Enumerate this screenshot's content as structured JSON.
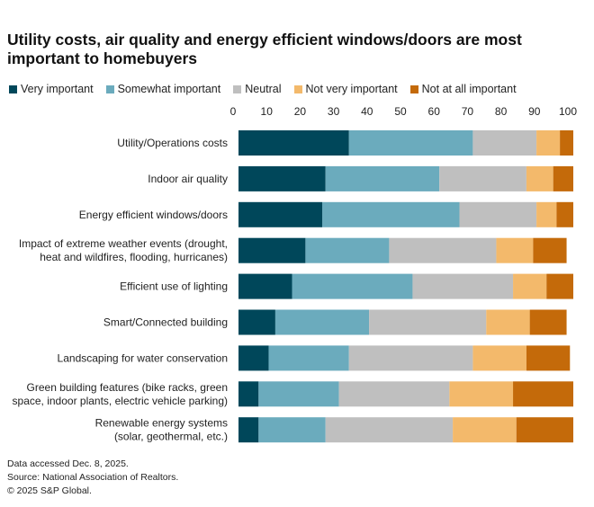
{
  "title": "Utility costs, air quality and energy efficient windows/doors are most important to homebuyers",
  "colors": {
    "very": "#00475a",
    "somewhat": "#6babbd",
    "neutral": "#bfbfbf",
    "not_very": "#f3b96b",
    "not_at_all": "#c46a0a"
  },
  "footer": {
    "accessed": "Data accessed Dec. 8, 2025.",
    "source": "Source:  National Association of Realtors.",
    "copyright": "© 2025 S&P Global."
  },
  "chart_data": {
    "type": "bar",
    "orientation": "horizontal",
    "stacked": true,
    "title": "Utility costs, air quality and energy efficient windows/doors are most important to homebuyers",
    "xlabel": "",
    "ylabel": "",
    "xlim": [
      0,
      100
    ],
    "xticks": [
      "0",
      "10",
      "20",
      "30",
      "40",
      "50",
      "60",
      "70",
      "80",
      "90",
      "100"
    ],
    "legend_position": "top",
    "categories": [
      [
        "Utility/Operations costs"
      ],
      [
        "Indoor air quality"
      ],
      [
        "Energy efficient windows/doors"
      ],
      [
        "Impact of extreme weather events (drought,",
        "heat and wildfires, flooding, hurricanes)"
      ],
      [
        "Efficient use of lighting"
      ],
      [
        "Smart/Connected building"
      ],
      [
        "Landscaping for water conservation"
      ],
      [
        "Green building features (bike racks, green",
        "space, indoor plants, electric vehicle parking)"
      ],
      [
        "Renewable energy systems",
        "(solar, geothermal, etc.)"
      ]
    ],
    "series": [
      {
        "key": "very",
        "name": "Very important",
        "values": [
          33,
          26,
          25,
          20,
          16,
          11,
          9,
          6,
          6
        ]
      },
      {
        "key": "somewhat",
        "name": "Somewhat important",
        "values": [
          37,
          34,
          41,
          25,
          36,
          28,
          24,
          24,
          20
        ]
      },
      {
        "key": "neutral",
        "name": "Neutral",
        "values": [
          19,
          26,
          23,
          32,
          30,
          35,
          37,
          33,
          38
        ]
      },
      {
        "key": "not_very",
        "name": "Not very important",
        "values": [
          7,
          8,
          6,
          11,
          10,
          13,
          16,
          19,
          19
        ]
      },
      {
        "key": "not_at_all",
        "name": "Not at all important",
        "values": [
          4,
          6,
          5,
          10,
          8,
          11,
          13,
          18,
          17
        ]
      }
    ]
  }
}
